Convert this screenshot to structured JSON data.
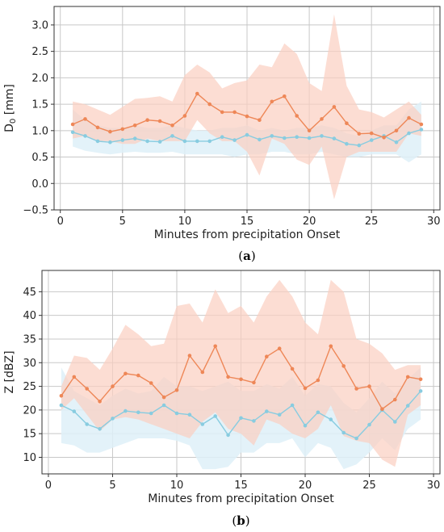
{
  "chart_data": [
    {
      "panel_label": "(a)",
      "panel_letter": "a",
      "type": "line",
      "xlabel": "Minutes from precipitation Onset",
      "ylabel_main": "D",
      "ylabel_sub": "0",
      "ylabel_unit": " [mm]",
      "xlim": [
        -0.5,
        30.5
      ],
      "ylim": [
        -0.5,
        3.35
      ],
      "xticks": [
        0,
        5,
        10,
        15,
        20,
        25,
        30
      ],
      "yticks": [
        -0.5,
        0.0,
        0.5,
        1.0,
        1.5,
        2.0,
        2.5,
        3.0
      ],
      "ytick_labels": [
        "−0.5",
        "0.0",
        "0.5",
        "1.0",
        "1.5",
        "2.0",
        "2.5",
        "3.0"
      ],
      "grid": true,
      "x": [
        1,
        2,
        3,
        4,
        5,
        6,
        7,
        8,
        9,
        10,
        11,
        12,
        13,
        14,
        15,
        16,
        17,
        18,
        19,
        20,
        21,
        22,
        23,
        24,
        25,
        26,
        27,
        28,
        29
      ],
      "series": [
        {
          "color": "#ee8757",
          "band_color": "#fbcfc0",
          "values": [
            1.12,
            1.22,
            1.06,
            0.98,
            1.03,
            1.1,
            1.2,
            1.18,
            1.1,
            1.28,
            1.7,
            1.5,
            1.35,
            1.35,
            1.27,
            1.2,
            1.55,
            1.65,
            1.28,
            1.0,
            1.22,
            1.45,
            1.14,
            0.94,
            0.95,
            0.87,
            1.0,
            1.24,
            1.12
          ],
          "band_upper": [
            1.55,
            1.5,
            1.4,
            1.3,
            1.45,
            1.6,
            1.62,
            1.65,
            1.55,
            2.05,
            2.25,
            2.1,
            1.8,
            1.9,
            1.95,
            2.25,
            2.2,
            2.65,
            2.45,
            1.9,
            1.75,
            3.2,
            1.85,
            1.4,
            1.35,
            1.25,
            1.4,
            1.55,
            1.3
          ],
          "band_lower": [
            0.85,
            0.9,
            0.8,
            0.8,
            0.75,
            0.75,
            0.85,
            0.8,
            0.8,
            0.8,
            1.2,
            0.95,
            0.8,
            0.8,
            0.6,
            0.15,
            0.85,
            0.75,
            0.45,
            0.35,
            0.7,
            -0.3,
            0.5,
            0.6,
            0.6,
            0.6,
            0.6,
            0.95,
            0.9
          ]
        },
        {
          "color": "#88cce0",
          "band_color": "#def0f8",
          "values": [
            0.97,
            0.9,
            0.8,
            0.78,
            0.82,
            0.85,
            0.8,
            0.79,
            0.9,
            0.8,
            0.8,
            0.8,
            0.88,
            0.82,
            0.92,
            0.83,
            0.9,
            0.86,
            0.88,
            0.86,
            0.9,
            0.85,
            0.75,
            0.72,
            0.82,
            0.9,
            0.78,
            0.95,
            1.02
          ],
          "band_upper": [
            1.4,
            1.2,
            1.1,
            1.05,
            1.05,
            1.1,
            1.05,
            1.05,
            1.1,
            1.05,
            1.0,
            1.0,
            1.05,
            1.05,
            1.1,
            1.0,
            1.05,
            1.0,
            1.05,
            1.05,
            1.1,
            1.05,
            0.95,
            0.9,
            1.0,
            1.1,
            1.1,
            1.4,
            1.55
          ],
          "band_lower": [
            0.7,
            0.62,
            0.58,
            0.55,
            0.58,
            0.6,
            0.58,
            0.58,
            0.6,
            0.55,
            0.55,
            0.55,
            0.55,
            0.5,
            0.55,
            0.55,
            0.6,
            0.6,
            0.55,
            0.55,
            0.6,
            0.55,
            0.5,
            0.5,
            0.55,
            0.55,
            0.55,
            0.4,
            0.55
          ]
        }
      ]
    },
    {
      "panel_label": "(b)",
      "panel_letter": "b",
      "type": "line",
      "xlabel": "Minutes from precipitation Onset",
      "ylabel_main": "Z [dBZ]",
      "ylabel_sub": "",
      "ylabel_unit": "",
      "xlim": [
        -0.5,
        30.5
      ],
      "ylim": [
        6.5,
        49.5
      ],
      "xticks": [
        0,
        5,
        10,
        15,
        20,
        25,
        30
      ],
      "yticks": [
        10,
        15,
        20,
        25,
        30,
        35,
        40,
        45
      ],
      "ytick_labels": [
        "10",
        "15",
        "20",
        "25",
        "30",
        "35",
        "40",
        "45"
      ],
      "grid": true,
      "x": [
        1,
        2,
        3,
        4,
        5,
        6,
        7,
        8,
        9,
        10,
        11,
        12,
        13,
        14,
        15,
        16,
        17,
        18,
        19,
        20,
        21,
        22,
        23,
        24,
        25,
        26,
        27,
        28,
        29
      ],
      "series": [
        {
          "color": "#ee8757",
          "band_color": "#fbcfc0",
          "values": [
            23.0,
            27.0,
            24.5,
            21.8,
            25.0,
            27.7,
            27.3,
            25.7,
            22.7,
            24.2,
            31.5,
            28.0,
            33.5,
            27.0,
            26.5,
            25.8,
            31.3,
            33.0,
            28.7,
            24.6,
            26.3,
            33.5,
            29.3,
            24.5,
            25.0,
            20.2,
            22.2,
            27.0,
            26.5
          ],
          "band_upper": [
            25.0,
            31.5,
            31.0,
            28.5,
            33.0,
            38.0,
            36.0,
            33.5,
            34.0,
            42.0,
            42.5,
            38.5,
            45.5,
            40.5,
            42.0,
            38.5,
            44.0,
            47.5,
            44.0,
            38.5,
            36.0,
            47.5,
            45.0,
            35.0,
            34.0,
            32.0,
            28.5,
            29.5,
            29.5
          ],
          "band_lower": [
            20.0,
            22.5,
            19.0,
            15.5,
            18.0,
            18.5,
            18.0,
            17.0,
            16.0,
            15.0,
            14.0,
            17.5,
            19.5,
            16.0,
            15.0,
            12.5,
            18.0,
            17.0,
            15.0,
            14.0,
            16.0,
            21.0,
            14.5,
            13.5,
            13.0,
            9.5,
            8.0,
            19.0,
            21.0
          ]
        },
        {
          "color": "#88cce0",
          "band_color": "#def0f8",
          "values": [
            21.0,
            19.7,
            17.0,
            16.0,
            18.2,
            19.8,
            19.5,
            19.3,
            21.0,
            19.3,
            19.0,
            17.0,
            18.7,
            14.7,
            18.3,
            17.7,
            19.7,
            19.0,
            21.0,
            16.7,
            19.5,
            18.0,
            15.2,
            14.0,
            16.9,
            20.0,
            17.5,
            20.9,
            24.0
          ],
          "band_upper": [
            29.0,
            24.0,
            22.5,
            21.0,
            23.0,
            24.5,
            23.5,
            24.0,
            27.0,
            25.0,
            25.0,
            24.0,
            25.0,
            26.0,
            24.0,
            24.0,
            25.5,
            24.5,
            27.0,
            23.0,
            25.5,
            25.0,
            21.5,
            19.5,
            22.5,
            26.0,
            23.5,
            26.5,
            29.0
          ],
          "band_lower": [
            13.0,
            12.5,
            11.0,
            11.0,
            12.0,
            13.0,
            14.0,
            14.0,
            14.0,
            13.5,
            12.5,
            7.5,
            7.5,
            8.0,
            11.0,
            11.0,
            13.0,
            13.0,
            14.0,
            10.0,
            13.0,
            12.0,
            7.5,
            8.5,
            11.0,
            14.0,
            11.5,
            16.0,
            18.0
          ]
        }
      ]
    }
  ]
}
